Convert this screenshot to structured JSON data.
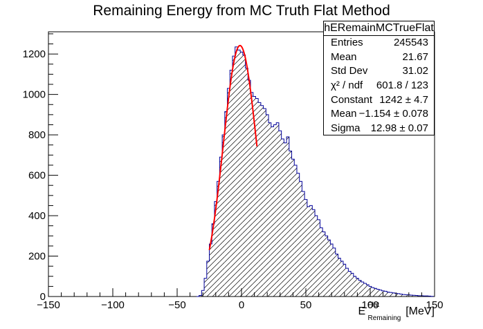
{
  "title": "Remaining Energy from MC Truth Flat Method",
  "stats": {
    "name": "hERemainMCTrueFlat",
    "rows": [
      {
        "label": "Entries",
        "value": "245543"
      },
      {
        "label": "Mean",
        "value": "21.67"
      },
      {
        "label": "Std Dev",
        "value": "31.02"
      },
      {
        "label": "χ² / ndf",
        "value": "601.8 / 123"
      },
      {
        "label": "Constant",
        "value": "1242 ± 4.7"
      },
      {
        "label": "Mean",
        "value": "−1.154 ± 0.078"
      },
      {
        "label": "Sigma",
        "value": "12.98 ± 0.07"
      }
    ]
  },
  "xlabel": {
    "main": "E",
    "sup": "Flat",
    "sub": "Remaining",
    "unit": "[MeV]"
  },
  "chart_data": {
    "type": "bar",
    "title": "Remaining Energy from MC Truth Flat Method",
    "xlim": [
      -150,
      150
    ],
    "ylim": [
      0,
      1310
    ],
    "xticks": [
      -150,
      -100,
      -50,
      0,
      50,
      100,
      150
    ],
    "yticks": [
      0,
      200,
      400,
      600,
      800,
      1000,
      1200
    ],
    "bin_centers": [
      -34,
      -32,
      -30,
      -28,
      -26,
      -24,
      -22,
      -20,
      -18,
      -16,
      -14,
      -12,
      -10,
      -8,
      -6,
      -4,
      -2,
      0,
      2,
      4,
      6,
      8,
      10,
      12,
      14,
      16,
      18,
      20,
      22,
      24,
      26,
      28,
      30,
      32,
      34,
      36,
      38,
      40,
      42,
      44,
      46,
      48,
      50,
      52,
      54,
      56,
      58,
      60,
      62,
      64,
      66,
      68,
      70,
      72,
      74,
      76,
      78,
      80,
      82,
      84,
      86,
      88,
      90,
      92,
      94,
      96,
      98,
      100,
      102,
      104,
      106,
      108,
      110,
      112,
      114,
      116,
      118,
      120,
      122,
      124,
      126,
      128,
      130,
      132,
      134,
      136,
      138,
      140,
      142,
      144,
      146,
      148
    ],
    "values": [
      0,
      5,
      30,
      90,
      175,
      260,
      360,
      470,
      570,
      690,
      800,
      915,
      1030,
      1120,
      1190,
      1235,
      1220,
      1210,
      1195,
      1130,
      1070,
      1010,
      990,
      980,
      960,
      945,
      930,
      900,
      860,
      840,
      850,
      860,
      820,
      780,
      760,
      790,
      720,
      680,
      650,
      610,
      570,
      520,
      480,
      445,
      450,
      430,
      400,
      380,
      340,
      320,
      300,
      280,
      260,
      240,
      210,
      190,
      175,
      160,
      140,
      125,
      115,
      100,
      90,
      80,
      72,
      65,
      58,
      50,
      44,
      40,
      36,
      32,
      28,
      26,
      22,
      20,
      18,
      16,
      14,
      12,
      10,
      9,
      8,
      7,
      6,
      5,
      4,
      4,
      3,
      3,
      2,
      1
    ],
    "fit": {
      "type": "gaussian",
      "constant": 1242,
      "mean": -1.154,
      "sigma": 12.98,
      "x_range": [
        -25,
        12
      ],
      "color": "#ff0000"
    },
    "line_color": "#000099",
    "fill": "hatched"
  }
}
